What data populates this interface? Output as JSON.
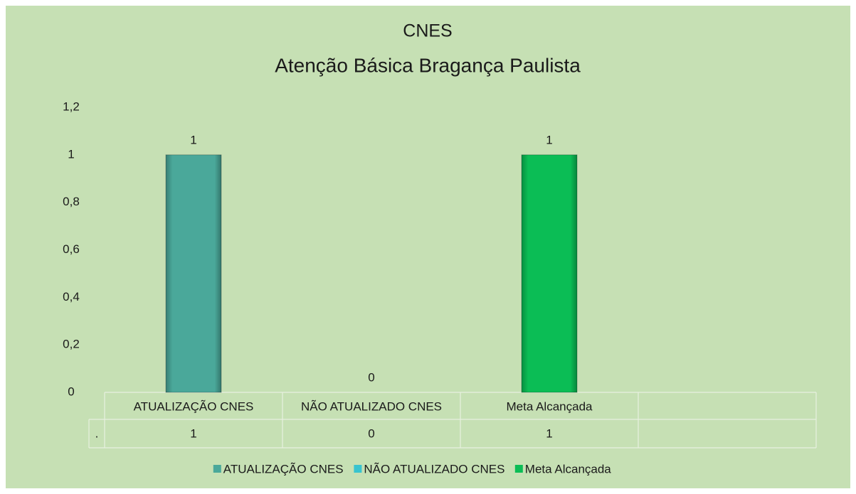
{
  "chart_data": {
    "type": "bar",
    "title": "CNES",
    "subtitle": "Atenção Básica  Bragança Paulista",
    "categories": [
      "ATUALIZAÇÃO CNES",
      "NÃO ATUALIZADO CNES",
      "Meta Alcançada",
      null
    ],
    "series": [
      {
        "name": ".",
        "values": [
          1,
          0,
          1,
          null
        ],
        "colors": [
          "#4aa89a",
          "#38c4cf",
          "#0bbd55",
          null
        ]
      }
    ],
    "ylim": [
      0,
      1.2
    ],
    "yticks": [
      0,
      {
        "value": 0.2,
        "label": "0,2"
      },
      {
        "value": 0.4,
        "label": "0,4"
      },
      {
        "value": 0.6,
        "label": "0,6"
      },
      {
        "value": 0.8,
        "label": "0,8"
      },
      1,
      {
        "value": 1.2,
        "label": "1,2"
      }
    ],
    "grid": false,
    "data_table": true,
    "legend": "bottom"
  }
}
